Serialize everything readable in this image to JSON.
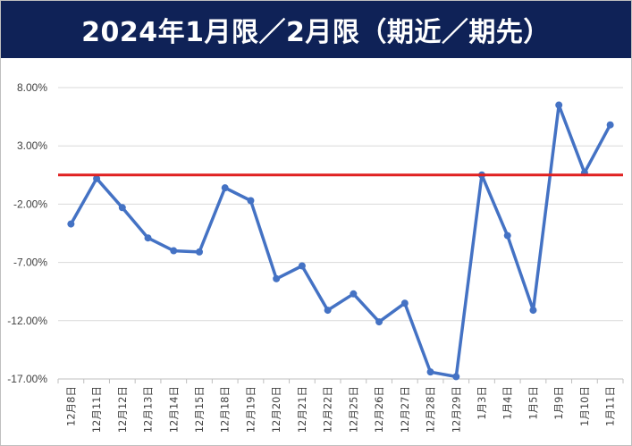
{
  "header": {
    "title": "2024年1月限／2月限（期近／期先）"
  },
  "chart_data": {
    "type": "line",
    "title": "2024年1月限／2月限（期近／期先）",
    "xlabel": "",
    "ylabel": "",
    "ylim": [
      -17.0,
      8.0
    ],
    "y_ticks": [
      8.0,
      3.0,
      -2.0,
      -7.0,
      -12.0,
      -17.0
    ],
    "y_tick_labels": [
      "8.00%",
      "3.00%",
      "-2.00%",
      "-7.00%",
      "-12.00%",
      "-17.00%"
    ],
    "grid": "horizontal",
    "legend": "none",
    "categories": [
      "12月8日",
      "12月11日",
      "12月12日",
      "12月13日",
      "12月14日",
      "12月15日",
      "12月18日",
      "12月19日",
      "12月20日",
      "12月21日",
      "12月22日",
      "12月25日",
      "12月26日",
      "12月27日",
      "12月28日",
      "12月29日",
      "1月3日",
      "1月4日",
      "1月5日",
      "1月9日",
      "1月10日",
      "1月11日"
    ],
    "series": [
      {
        "values": [
          -3.7,
          0.2,
          -2.3,
          -4.9,
          -6.0,
          -6.1,
          -0.6,
          -1.7,
          -8.4,
          -7.3,
          -11.1,
          -9.7,
          -12.1,
          -10.5,
          -16.4,
          -16.8,
          0.5,
          -4.7,
          -11.1,
          6.5,
          0.7,
          4.8
        ],
        "color": "#4472c4"
      }
    ],
    "reference_line": {
      "value": 0.5,
      "color": "#e02020"
    }
  }
}
